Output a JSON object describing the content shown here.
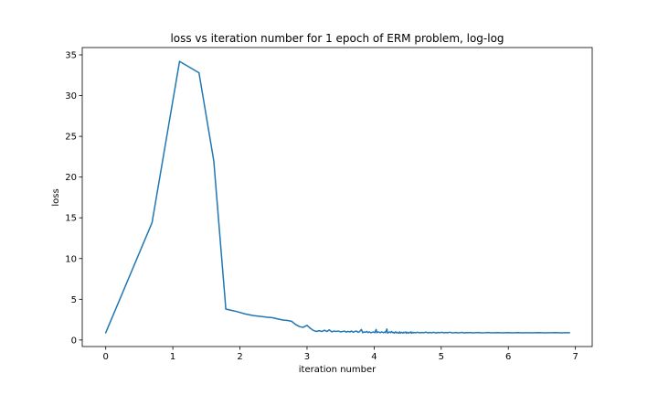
{
  "chart_data": {
    "type": "line",
    "title": "loss vs iteration number for 1 epoch of ERM problem, log-log",
    "xlabel": "iteration number",
    "ylabel": "loss",
    "xlim": [
      -0.35,
      7.25
    ],
    "ylim": [
      -0.8,
      35.9
    ],
    "xticks": [
      0,
      1,
      2,
      3,
      4,
      5,
      6,
      7
    ],
    "yticks": [
      0,
      5,
      10,
      15,
      20,
      25,
      30,
      35
    ],
    "grid": false,
    "color": "#1f77b4",
    "series": [
      {
        "x": [
          0.0,
          0.69,
          1.1,
          1.39,
          1.61,
          1.79,
          1.95,
          2.08,
          2.2,
          2.3,
          2.4,
          2.48,
          2.56,
          2.64,
          2.71,
          2.77,
          2.83,
          2.89,
          2.94,
          3.0,
          3.04,
          3.09,
          3.14,
          3.18,
          3.22,
          3.26,
          3.3,
          3.33,
          3.37,
          3.4,
          3.43,
          3.47,
          3.5,
          3.53,
          3.56,
          3.58,
          3.61,
          3.64,
          3.66,
          3.69,
          3.71,
          3.74,
          3.76,
          3.78,
          3.81,
          3.83,
          3.85,
          3.87,
          3.89,
          3.91,
          3.93,
          3.95,
          3.97,
          3.99,
          4.01,
          4.03,
          4.04,
          4.06,
          4.08,
          4.09,
          4.11,
          4.13,
          4.14,
          4.16,
          4.17,
          4.19,
          4.2,
          4.22,
          4.23,
          4.25,
          4.26,
          4.28,
          4.29,
          4.3,
          4.32,
          4.33,
          4.34,
          4.36,
          4.37,
          4.38,
          4.39,
          4.41,
          4.42,
          4.43,
          4.44,
          4.45,
          4.47,
          4.48,
          4.49,
          4.5,
          4.51,
          4.52,
          4.53,
          4.54,
          4.55,
          4.56,
          4.57,
          4.58,
          4.59,
          4.6,
          4.62,
          4.65,
          4.68,
          4.71,
          4.74,
          4.77,
          4.8,
          4.83,
          4.86,
          4.89,
          4.92,
          4.95,
          4.98,
          5.01,
          5.04,
          5.07,
          5.1,
          5.13,
          5.16,
          5.19,
          5.22,
          5.25,
          5.28,
          5.31,
          5.34,
          5.37,
          5.4,
          5.43,
          5.46,
          5.5,
          5.55,
          5.6,
          5.65,
          5.7,
          5.75,
          5.8,
          5.85,
          5.9,
          5.95,
          6.0,
          6.05,
          6.1,
          6.15,
          6.2,
          6.25,
          6.3,
          6.35,
          6.4,
          6.45,
          6.5,
          6.55,
          6.6,
          6.65,
          6.7,
          6.75,
          6.8,
          6.85,
          6.91
        ],
        "y": [
          0.9,
          14.4,
          34.2,
          32.8,
          22.0,
          3.8,
          3.5,
          3.2,
          3.0,
          2.9,
          2.8,
          2.75,
          2.6,
          2.45,
          2.4,
          2.3,
          1.9,
          1.65,
          1.55,
          1.8,
          1.5,
          1.2,
          1.05,
          1.15,
          1.05,
          1.2,
          1.05,
          1.25,
          1.0,
          1.1,
          1.05,
          1.1,
          1.0,
          1.05,
          1.1,
          0.98,
          1.05,
          1.0,
          1.1,
          0.95,
          1.05,
          1.1,
          0.95,
          1.0,
          1.3,
          0.9,
          1.0,
          0.95,
          1.05,
          0.92,
          1.0,
          0.9,
          0.95,
          1.0,
          0.9,
          1.3,
          0.9,
          1.0,
          0.95,
          0.9,
          1.0,
          0.95,
          0.9,
          1.0,
          0.9,
          1.35,
          0.85,
          0.95,
          1.0,
          0.9,
          1.05,
          0.9,
          0.95,
          0.85,
          1.0,
          0.9,
          0.95,
          0.85,
          0.9,
          1.0,
          0.85,
          0.95,
          0.9,
          0.85,
          0.95,
          0.9,
          1.0,
          0.85,
          0.9,
          0.95,
          0.85,
          0.9,
          0.95,
          0.9,
          1.0,
          0.85,
          0.9,
          0.95,
          0.88,
          0.92,
          0.9,
          0.95,
          0.88,
          0.93,
          0.9,
          0.97,
          0.88,
          0.92,
          0.9,
          0.95,
          0.87,
          0.93,
          0.9,
          0.95,
          0.88,
          0.92,
          0.9,
          0.96,
          0.88,
          0.9,
          0.93,
          0.88,
          0.9,
          0.94,
          0.87,
          0.91,
          0.9,
          0.93,
          0.88,
          0.9,
          0.92,
          0.89,
          0.9,
          0.92,
          0.88,
          0.9,
          0.91,
          0.89,
          0.9,
          0.91,
          0.89,
          0.9,
          0.91,
          0.89,
          0.9,
          0.9,
          0.89,
          0.9,
          0.91,
          0.9,
          0.89,
          0.9,
          0.9,
          0.91,
          0.9,
          0.89,
          0.9,
          0.9
        ]
      }
    ]
  }
}
